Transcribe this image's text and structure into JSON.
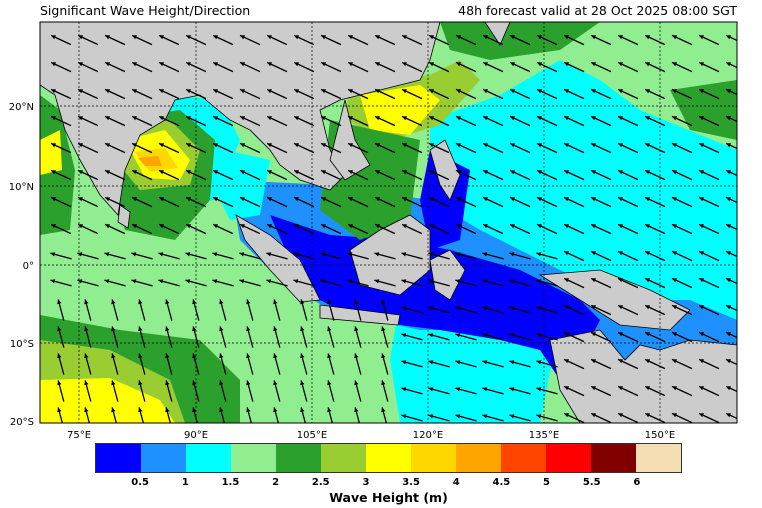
{
  "header": {
    "title": "Significant Wave Height/Direction",
    "valid_time": "48h forecast valid at 28 Oct 2025 08:00 SGT"
  },
  "map": {
    "lat_ticks": [
      "20°N",
      "10°N",
      "0°",
      "10°S",
      "20°S"
    ],
    "lon_ticks": [
      "75°E",
      "90°E",
      "105°E",
      "120°E",
      "135°E",
      "150°E"
    ],
    "land_color": "#cccccc",
    "arrow_icon": "wave-direction-arrow-icon"
  },
  "colorbar": {
    "label": "Wave Height (m)",
    "colors": [
      "#0000ff",
      "#1e90ff",
      "#00ffff",
      "#90ee90",
      "#2ca02c",
      "#9acd32",
      "#ffff00",
      "#ffd700",
      "#ffa500",
      "#ff4500",
      "#ff0000",
      "#800000",
      "#f5deb3"
    ],
    "ticks": [
      "0.5",
      "1",
      "1.5",
      "2",
      "2.5",
      "3",
      "3.5",
      "4",
      "4.5",
      "5",
      "5.5",
      "6"
    ]
  }
}
